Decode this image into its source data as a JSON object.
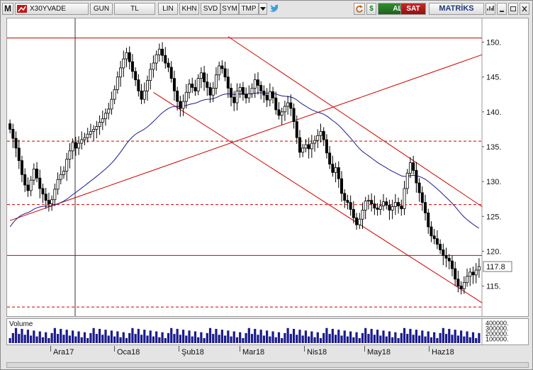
{
  "toolbar": {
    "m_label": "M",
    "symbol": "X30YVADE",
    "period": "GUN",
    "currency": "TL",
    "scale": "LIN",
    "khn": "KHN",
    "svd": "SVD",
    "sym": "SYM",
    "tmp": "TMP",
    "buy_label": "AL",
    "sell_label": "SAT",
    "brand": "MATRİKS",
    "icons": [
      "refresh-icon",
      "dollar-icon",
      "chart-type-icon",
      "twitter-icon",
      "minimize-icon",
      "restore-icon",
      "close-icon"
    ]
  },
  "colors": {
    "candle_up": "#ffffff",
    "candle_down": "#000000",
    "trendline": "#cc0000",
    "moving_average": "#1a1a8c",
    "volume": "#1a1a8c",
    "buy": "#2a7a2a",
    "sell": "#b41e1e"
  },
  "chart_data": {
    "type": "candlestick",
    "ylim": [
      111.5,
      153
    ],
    "y_ticks": [
      150,
      145,
      140,
      135,
      130,
      125,
      120,
      115
    ],
    "y_tick_labels": [
      "150.",
      "145.",
      "140.",
      "135.",
      "130.",
      "125.",
      "120.",
      "115."
    ],
    "last_price_label": "117.8",
    "x_labels": [
      "Ara17",
      "Oca18",
      "Şub18",
      "Mar18",
      "Nis18",
      "May18",
      "Haz18"
    ],
    "horizontal_lines": [
      {
        "level": 150.6,
        "style": "solid"
      },
      {
        "level": 135.8,
        "style": "dashed"
      },
      {
        "level": 126.7,
        "style": "dashed"
      },
      {
        "level": 119.4,
        "style": "solid"
      },
      {
        "level": 112.0,
        "style": "dashed"
      }
    ],
    "trend_lines": [
      {
        "from": [
          0,
          124.4
        ],
        "to": [
          162,
          148.2
        ]
      },
      {
        "from": [
          48,
          142.8
        ],
        "to": [
          162,
          112.6
        ]
      },
      {
        "from": [
          73,
          150.8
        ],
        "to": [
          162,
          126.4
        ]
      }
    ],
    "moving_average_start": 123.5,
    "closes": [
      137.5,
      136.2,
      134.8,
      133.0,
      131.0,
      129.5,
      128.7,
      130.2,
      131.8,
      130.5,
      129.0,
      128.2,
      127.3,
      126.8,
      127.4,
      128.9,
      130.3,
      131.0,
      131.5,
      133.2,
      134.4,
      135.6,
      134.8,
      135.5,
      136.0,
      136.3,
      136.8,
      137.2,
      137.5,
      137.9,
      138.5,
      139.0,
      139.8,
      140.4,
      141.8,
      143.2,
      145.0,
      146.3,
      147.6,
      148.5,
      147.2,
      145.8,
      144.6,
      143.0,
      141.8,
      143.0,
      144.5,
      146.1,
      147.0,
      148.2,
      149.0,
      148.1,
      147.0,
      146.4,
      144.8,
      143.0,
      141.5,
      140.5,
      141.5,
      142.8,
      144.0,
      143.5,
      143.0,
      144.8,
      145.6,
      144.3,
      143.5,
      142.4,
      143.4,
      145.3,
      146.6,
      146.2,
      145.0,
      143.4,
      142.1,
      141.3,
      143.0,
      143.5,
      142.5,
      142.0,
      142.6,
      143.4,
      144.6,
      143.8,
      143.0,
      142.4,
      141.7,
      142.9,
      142.0,
      140.3,
      139.5,
      140.0,
      140.8,
      141.3,
      140.5,
      138.6,
      136.3,
      134.2,
      134.8,
      135.3,
      134.7,
      135.5,
      135.9,
      136.6,
      137.2,
      136.0,
      134.1,
      132.5,
      131.3,
      132.0,
      130.4,
      128.3,
      127.3,
      127.0,
      126.0,
      124.8,
      123.8,
      124.6,
      125.9,
      127.2,
      127.3,
      126.8,
      126.2,
      126.0,
      126.5,
      127.1,
      126.6,
      125.9,
      126.4,
      127.0,
      126.5,
      126.1,
      129.0,
      131.2,
      132.7,
      131.6,
      129.8,
      128.4,
      127.0,
      125.5,
      123.5,
      122.2,
      121.8,
      121.0,
      120.2,
      119.4,
      119.0,
      118.6,
      117.5,
      116.0,
      115.0,
      114.6,
      115.5,
      116.4,
      117.0,
      116.6,
      117.3,
      117.8
    ],
    "volume_axis_labels": [
      "400000.",
      "300000.",
      "200000.",
      "100000."
    ],
    "volume_series_label": "Volume",
    "volume_ylim": [
      0,
      400000
    ]
  }
}
